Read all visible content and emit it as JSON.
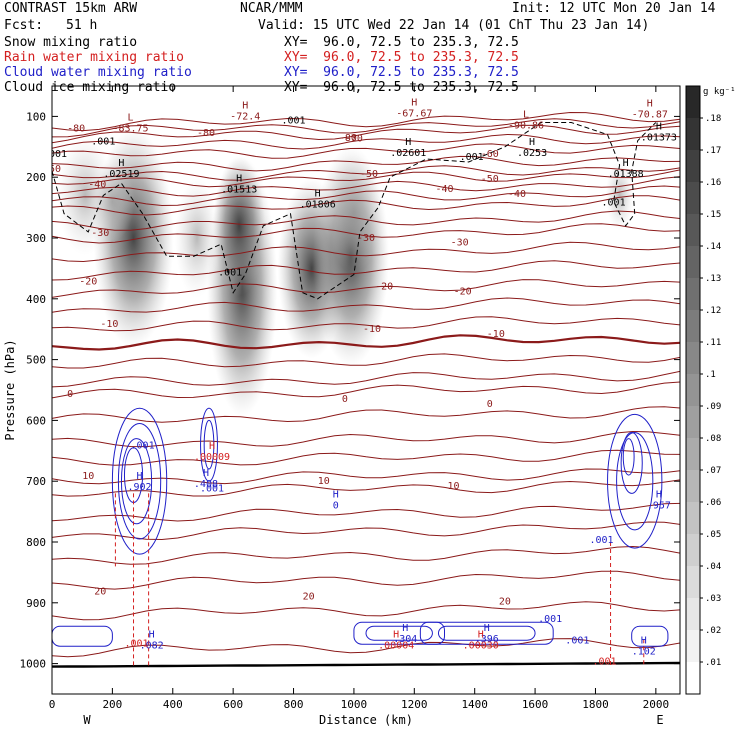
{
  "header": {
    "model": "CONTRAST 15km ARW",
    "org": "NCAR/MMM",
    "init": "Init: 12 UTC Mon 20 Jan 14",
    "fcst_label": "Fcst:",
    "fcst_value": "51 h",
    "valid": "Valid: 15 UTC Wed 22 Jan 14 (01 ChT Thu 23 Jan 14)"
  },
  "fields": [
    {
      "name": "Snow mixing ratio",
      "xy": "XY=  96.0, 72.5 to 235.3, 72.5",
      "color": "#000000"
    },
    {
      "name": "Rain water mixing ratio",
      "xy": "XY=  96.0, 72.5 to 235.3, 72.5",
      "color": "#d42020"
    },
    {
      "name": "Cloud water mixing ratio",
      "xy": "XY=  96.0, 72.5 to 235.3, 72.5",
      "color": "#2020c8"
    },
    {
      "name": "Cloud ice mixing ratio",
      "xy": "XY=  96.0, 72.5 to 235.3, 72.5",
      "color": "#000000"
    }
  ],
  "colorbar": {
    "unit": "g kg⁻¹",
    "levels": [
      ".18",
      ".17",
      ".16",
      ".15",
      ".14",
      ".13",
      ".12",
      ".11",
      ".1",
      ".09",
      ".08",
      ".07",
      ".06",
      ".05",
      ".04",
      ".03",
      ".02",
      ".01"
    ]
  },
  "chart_data": {
    "type": "contour",
    "xlabel": "Distance (km)",
    "ylabel": "Pressure (hPa)",
    "x_ticks": [
      0,
      200,
      400,
      600,
      800,
      1000,
      1200,
      1400,
      1600,
      1800,
      2000
    ],
    "y_ticks": [
      100,
      200,
      300,
      400,
      500,
      600,
      700,
      800,
      900,
      1000
    ],
    "xlim": [
      0,
      2080
    ],
    "ylim": [
      1050,
      50
    ],
    "y_axis_inverted": true,
    "x_end_labels": {
      "left": "W",
      "right": "E"
    },
    "temperature_isotherms_degC": [
      {
        "value": -80,
        "labels_at_km": [
          80,
          510,
          980
        ]
      },
      {
        "value": -70,
        "labels_at_km": [
          1000
        ]
      },
      {
        "value": -60,
        "labels_at_km": [
          1450
        ]
      },
      {
        "value": -50,
        "labels_at_km": [
          0,
          1050,
          1450
        ]
      },
      {
        "value": -40,
        "labels_at_km": [
          150,
          1300,
          1540
        ]
      },
      {
        "value": -30,
        "labels_at_km": [
          160,
          1040,
          1350
        ]
      },
      {
        "value": -20,
        "labels_at_km": [
          120,
          1100,
          1360
        ]
      },
      {
        "value": -10,
        "labels_at_km": [
          190,
          1060,
          1470
        ]
      },
      {
        "value": 0,
        "labels_at_km": [
          60,
          970,
          1450
        ]
      },
      {
        "value": 10,
        "labels_at_km": [
          120,
          900,
          1330
        ]
      },
      {
        "value": 20,
        "labels_at_km": [
          160,
          850,
          1500
        ]
      }
    ],
    "isotherm_labels_text": [
      "-80",
      "-80",
      "-80",
      "-70",
      "-60",
      "-50",
      "-50",
      "-50",
      "-40",
      "-40",
      "-40",
      "-30",
      "-30",
      "-30",
      "-20",
      "-20",
      "-20",
      "-10",
      "-10",
      "-10",
      "0",
      "0",
      "0",
      "10",
      "10",
      "10",
      "20",
      "20",
      "20"
    ],
    "extrema_labels": [
      {
        "mark": "L",
        "value": "-83.75",
        "x_km": 260,
        "p_hpa": 110,
        "color": "#8b1a1a"
      },
      {
        "mark": "H",
        "value": "-72.4",
        "x_km": 640,
        "p_hpa": 90,
        "color": "#8b1a1a"
      },
      {
        "mark": "H",
        "value": "-67.67",
        "x_km": 1200,
        "p_hpa": 85,
        "color": "#8b1a1a"
      },
      {
        "mark": "L",
        "value": "-90.86",
        "x_km": 1570,
        "p_hpa": 105,
        "color": "#8b1a1a"
      },
      {
        "mark": "H",
        "value": "-70.87",
        "x_km": 1980,
        "p_hpa": 87,
        "color": "#8b1a1a"
      },
      {
        "mark": "H",
        "value": ".02519",
        "x_km": 230,
        "p_hpa": 185,
        "color": "#000000"
      },
      {
        "mark": "H",
        "value": ".01513",
        "x_km": 620,
        "p_hpa": 210,
        "color": "#000000"
      },
      {
        "mark": "H",
        "value": ".01806",
        "x_km": 880,
        "p_hpa": 235,
        "color": "#000000"
      },
      {
        "mark": "H",
        "value": ".02601",
        "x_km": 1180,
        "p_hpa": 150,
        "color": "#000000"
      },
      {
        "mark": "H",
        "value": ".0253",
        "x_km": 1590,
        "p_hpa": 150,
        "color": "#000000"
      },
      {
        "mark": "H",
        "value": ".01373",
        "x_km": 2010,
        "p_hpa": 125,
        "color": "#000000"
      },
      {
        "mark": "H",
        "value": ".01388",
        "x_km": 1900,
        "p_hpa": 185,
        "color": "#000000"
      },
      {
        "mark": "H",
        "value": ".00009",
        "x_km": 530,
        "p_hpa": 650,
        "color": "#d42020"
      },
      {
        "mark": "H",
        "value": ".902",
        "x_km": 290,
        "p_hpa": 700,
        "color": "#2020c8"
      },
      {
        "mark": "H",
        "value": ".408",
        "x_km": 510,
        "p_hpa": 695,
        "color": "#2020c8"
      },
      {
        "mark": "H",
        "value": "0",
        "x_km": 940,
        "p_hpa": 730,
        "color": "#2020c8"
      },
      {
        "mark": "H",
        "value": ".957",
        "x_km": 2010,
        "p_hpa": 730,
        "color": "#2020c8"
      },
      {
        "mark": "H",
        "value": ".304",
        "x_km": 1170,
        "p_hpa": 950,
        "color": "#2020c8"
      },
      {
        "mark": "H",
        "value": ".396",
        "x_km": 1440,
        "p_hpa": 950,
        "color": "#2020c8"
      },
      {
        "mark": "H",
        "value": ".082",
        "x_km": 330,
        "p_hpa": 960,
        "color": "#2020c8"
      },
      {
        "mark": "H",
        "value": ".102",
        "x_km": 1960,
        "p_hpa": 970,
        "color": "#2020c8"
      },
      {
        "mark": "H",
        "value": ".00004",
        "x_km": 1140,
        "p_hpa": 960,
        "color": "#d42020"
      },
      {
        "mark": "H",
        "value": ".00030",
        "x_km": 1420,
        "p_hpa": 960,
        "color": "#d42020"
      }
    ],
    "contour_value_labels": [
      {
        "text": ".001",
        "x_km": 10,
        "p_hpa": 160,
        "color": "#000000"
      },
      {
        "text": ".001",
        "x_km": 170,
        "p_hpa": 140,
        "color": "#000000"
      },
      {
        "text": ".001",
        "x_km": 800,
        "p_hpa": 105,
        "color": "#000000"
      },
      {
        "text": ".001",
        "x_km": 1390,
        "p_hpa": 165,
        "color": "#000000"
      },
      {
        "text": ".001",
        "x_km": 1860,
        "p_hpa": 240,
        "color": "#000000"
      },
      {
        "text": ".001",
        "x_km": 590,
        "p_hpa": 355,
        "color": "#000000"
      },
      {
        "text": ".001",
        "x_km": 300,
        "p_hpa": 640,
        "color": "#2020c8"
      },
      {
        "text": ".001",
        "x_km": 530,
        "p_hpa": 710,
        "color": "#2020c8"
      },
      {
        "text": ".001",
        "x_km": 1820,
        "p_hpa": 795,
        "color": "#2020c8"
      },
      {
        "text": ".001",
        "x_km": 1650,
        "p_hpa": 925,
        "color": "#2020c8"
      },
      {
        "text": ".001",
        "x_km": 1740,
        "p_hpa": 960,
        "color": "#2020c8"
      },
      {
        "text": ".001",
        "x_km": 280,
        "p_hpa": 965,
        "color": "#d42020"
      },
      {
        "text": ".001",
        "x_km": 1830,
        "p_hpa": 995,
        "color": "#d42020"
      }
    ]
  }
}
